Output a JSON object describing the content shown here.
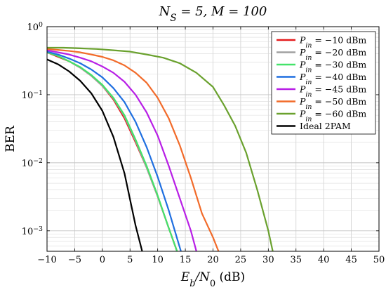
{
  "chart_data": {
    "type": "line",
    "title": "N_S = 5, M = 100",
    "xlabel": "E_b / N_0 (dB)",
    "ylabel": "BER",
    "xlim": [
      -10,
      50
    ],
    "ylim": [
      0.0005,
      1
    ],
    "yscale": "log",
    "grid": true,
    "legend_position": "top-right",
    "x_ticks": [
      -10,
      -5,
      0,
      5,
      10,
      15,
      20,
      25,
      30,
      35,
      40,
      45,
      50
    ],
    "y_ticks": [
      {
        "value": 1,
        "label": "10^0"
      },
      {
        "value": 0.1,
        "label": "10^-1"
      },
      {
        "value": 0.01,
        "label": "10^-2"
      },
      {
        "value": 0.001,
        "label": "10^-3"
      }
    ],
    "series": [
      {
        "name": "P_in = −10 dBm",
        "color": "#e41a1c",
        "x": [
          -10,
          -8,
          -6,
          -4,
          -2,
          0,
          2,
          4,
          6,
          8,
          10,
          12,
          13.5
        ],
        "y": [
          0.42,
          0.36,
          0.31,
          0.25,
          0.19,
          0.135,
          0.085,
          0.045,
          0.02,
          0.0085,
          0.0032,
          0.0011,
          0.0005
        ]
      },
      {
        "name": "P_in = −20 dBm",
        "color": "#a0a0a0",
        "x": [
          -10,
          -8,
          -6,
          -4,
          -2,
          0,
          2,
          4,
          6,
          8,
          10,
          12,
          13.5
        ],
        "y": [
          0.42,
          0.37,
          0.31,
          0.25,
          0.19,
          0.135,
          0.088,
          0.048,
          0.021,
          0.0085,
          0.0032,
          0.0011,
          0.0005
        ]
      },
      {
        "name": "P_in = −30 dBm",
        "color": "#44e36a",
        "x": [
          -10,
          -8,
          -6,
          -4,
          -2,
          0,
          2,
          4,
          6,
          8,
          10,
          12,
          13.5
        ],
        "y": [
          0.42,
          0.37,
          0.31,
          0.255,
          0.195,
          0.14,
          0.09,
          0.05,
          0.022,
          0.009,
          0.0033,
          0.0011,
          0.0005
        ]
      },
      {
        "name": "P_in = −40 dBm",
        "color": "#1f6fe0",
        "x": [
          -10,
          -8,
          -6,
          -4,
          -2,
          0,
          2,
          4,
          6,
          8,
          10,
          12,
          14.2
        ],
        "y": [
          0.43,
          0.39,
          0.34,
          0.29,
          0.235,
          0.18,
          0.125,
          0.078,
          0.04,
          0.017,
          0.0062,
          0.002,
          0.0005
        ]
      },
      {
        "name": "P_in = −45 dBm",
        "color": "#b81ee6",
        "x": [
          -10,
          -8,
          -6,
          -4,
          -2,
          0,
          2,
          4,
          6,
          8,
          10,
          12,
          14,
          16,
          17
        ],
        "y": [
          0.45,
          0.42,
          0.39,
          0.35,
          0.31,
          0.26,
          0.21,
          0.155,
          0.1,
          0.055,
          0.025,
          0.009,
          0.003,
          0.001,
          0.0005
        ]
      },
      {
        "name": "P_in = −50 dBm",
        "color": "#f26b2a",
        "x": [
          -10,
          -8,
          -6,
          -4,
          -2,
          0,
          2,
          4,
          6,
          8,
          10,
          12,
          14,
          16,
          18,
          20,
          21
        ],
        "y": [
          0.47,
          0.455,
          0.44,
          0.42,
          0.39,
          0.36,
          0.32,
          0.27,
          0.21,
          0.15,
          0.09,
          0.045,
          0.018,
          0.006,
          0.0018,
          0.0008,
          0.0005
        ]
      },
      {
        "name": "P_in = −60 dBm",
        "color": "#6aa12e",
        "x": [
          -10,
          -7,
          -4,
          -1,
          2,
          5,
          8,
          11,
          14,
          17,
          20,
          22,
          24,
          26,
          28,
          30,
          30.8
        ],
        "y": [
          0.49,
          0.49,
          0.48,
          0.47,
          0.45,
          0.43,
          0.39,
          0.35,
          0.29,
          0.21,
          0.13,
          0.07,
          0.035,
          0.014,
          0.004,
          0.001,
          0.0005
        ]
      },
      {
        "name": "Ideal 2PAM",
        "color": "#000000",
        "x": [
          -10,
          -8,
          -6,
          -4,
          -2,
          0,
          2,
          4,
          6,
          7.2
        ],
        "y": [
          0.33,
          0.28,
          0.22,
          0.16,
          0.105,
          0.058,
          0.024,
          0.007,
          0.0012,
          0.0005
        ]
      }
    ]
  }
}
